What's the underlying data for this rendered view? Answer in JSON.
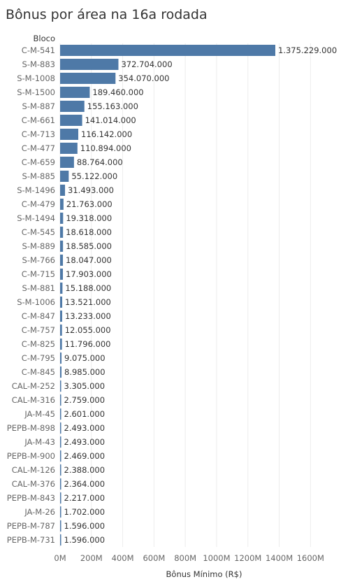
{
  "chart_data": {
    "type": "bar",
    "orientation": "horizontal",
    "title": "Bônus por área na 16a rodada",
    "category_header": "Bloco",
    "xlabel": "Bônus Mínimo (R$)",
    "xlim": [
      0,
      1700000000
    ],
    "xticks": [
      0,
      200000000,
      400000000,
      600000000,
      800000000,
      1000000000,
      1200000000,
      1400000000,
      1600000000
    ],
    "xtick_labels": [
      "0M",
      "200M",
      "400M",
      "600M",
      "800M",
      "1000M",
      "1200M",
      "1400M",
      "1600M"
    ],
    "grid": "vertical",
    "bar_color": "#4e79a7",
    "categories": [
      "C-M-541",
      "S-M-883",
      "S-M-1008",
      "S-M-1500",
      "S-M-887",
      "C-M-661",
      "C-M-713",
      "C-M-477",
      "C-M-659",
      "S-M-885",
      "S-M-1496",
      "C-M-479",
      "S-M-1494",
      "C-M-545",
      "S-M-889",
      "S-M-766",
      "C-M-715",
      "S-M-881",
      "S-M-1006",
      "C-M-847",
      "C-M-757",
      "C-M-825",
      "C-M-795",
      "C-M-845",
      "CAL-M-252",
      "CAL-M-316",
      "JA-M-45",
      "PEPB-M-898",
      "JA-M-43",
      "PEPB-M-900",
      "CAL-M-126",
      "CAL-M-376",
      "PEPB-M-843",
      "JA-M-26",
      "PEPB-M-787",
      "PEPB-M-731"
    ],
    "values": [
      1375229000,
      372704000,
      354070000,
      189460000,
      155163000,
      141014000,
      116142000,
      110894000,
      88764000,
      55122000,
      31493000,
      21763000,
      19318000,
      18618000,
      18585000,
      18047000,
      17903000,
      15188000,
      13521000,
      13233000,
      12055000,
      11796000,
      9075000,
      8985000,
      3305000,
      2759000,
      2601000,
      2493000,
      2493000,
      2469000,
      2388000,
      2364000,
      2217000,
      1702000,
      1596000,
      1596000
    ],
    "value_labels": [
      "1.375.229.000",
      "372.704.000",
      "354.070.000",
      "189.460.000",
      "155.163.000",
      "141.014.000",
      "116.142.000",
      "110.894.000",
      "88.764.000",
      "55.122.000",
      "31.493.000",
      "21.763.000",
      "19.318.000",
      "18.618.000",
      "18.585.000",
      "18.047.000",
      "17.903.000",
      "15.188.000",
      "13.521.000",
      "13.233.000",
      "12.055.000",
      "11.796.000",
      "9.075.000",
      "8.985.000",
      "3.305.000",
      "2.759.000",
      "2.601.000",
      "2.493.000",
      "2.493.000",
      "2.469.000",
      "2.388.000",
      "2.364.000",
      "2.217.000",
      "1.702.000",
      "1.596.000",
      "1.596.000"
    ]
  }
}
